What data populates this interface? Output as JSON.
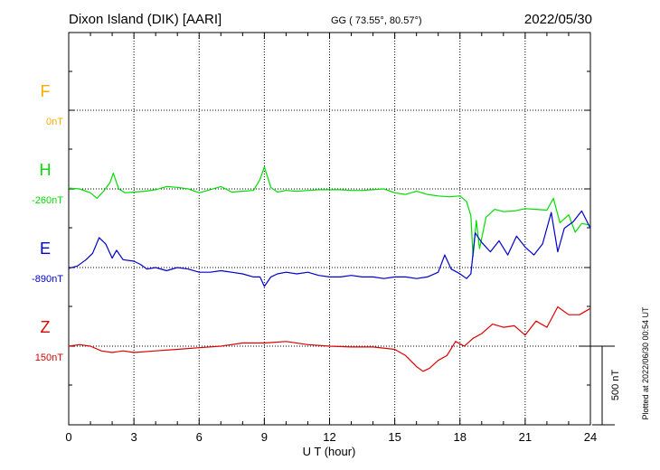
{
  "header": {
    "station": "Dixon Island (DIK)  [AARI]",
    "coords": "GG ( 73.55°,  80.57°)",
    "date": "2022/05/30"
  },
  "side_note": "Plotted at 2022/06/30 00:54 UT",
  "chart_data": {
    "type": "line",
    "title": "Dixon Island (DIK)  [AARI]",
    "xlabel": "U T (hour)",
    "xlim": [
      0,
      24
    ],
    "x_ticks": [
      0,
      3,
      6,
      9,
      12,
      15,
      18,
      21,
      24
    ],
    "x_tick_labels": [
      "0",
      "3",
      "6",
      "9",
      "12",
      "15",
      "18",
      "21",
      "24"
    ],
    "grid": true,
    "scale_bar": {
      "value_nT": 500,
      "label": "500 nT"
    },
    "colors": {
      "F": "#ffaa00",
      "H": "#00dd00",
      "E": "#0000cc",
      "Z": "#dd0000",
      "grid": "#000000"
    },
    "series": [
      {
        "name": "F",
        "baseline": "0nT",
        "baseline_nT": 0,
        "x": [],
        "values": []
      },
      {
        "name": "H",
        "baseline": "-260nT",
        "baseline_nT": -260,
        "x": [
          0,
          0.5,
          1.0,
          1.3,
          1.6,
          1.9,
          2.05,
          2.3,
          2.6,
          3.0,
          3.5,
          4.0,
          4.5,
          5.0,
          5.5,
          6.0,
          6.5,
          7.0,
          7.5,
          8.0,
          8.5,
          8.8,
          9.0,
          9.3,
          9.6,
          10.0,
          10.5,
          11.0,
          11.5,
          12.0,
          12.5,
          13.0,
          13.5,
          14.0,
          14.5,
          15.0,
          15.5,
          16.0,
          16.5,
          17.0,
          17.5,
          18.0,
          18.3,
          18.5,
          18.6,
          18.75,
          18.9,
          19.2,
          19.6,
          20.0,
          20.5,
          21.0,
          21.5,
          22.0,
          22.3,
          22.6,
          23.0,
          23.3,
          23.6,
          24
        ],
        "values": [
          5,
          0,
          -25,
          -60,
          -15,
          40,
          100,
          0,
          -25,
          -20,
          -15,
          -5,
          15,
          10,
          0,
          -25,
          -5,
          15,
          -20,
          -15,
          -10,
          60,
          140,
          10,
          -20,
          -10,
          -15,
          -10,
          -5,
          -5,
          -5,
          -10,
          -10,
          -5,
          0,
          -25,
          -35,
          -15,
          -35,
          -45,
          -50,
          -45,
          -80,
          -170,
          -430,
          -200,
          -380,
          -180,
          -130,
          -145,
          -140,
          -125,
          -130,
          -135,
          -60,
          -215,
          -165,
          -275,
          -220,
          -230
        ]
      },
      {
        "name": "E",
        "baseline": "-890nT",
        "baseline_nT": -890,
        "x": [
          0,
          0.4,
          0.8,
          1.1,
          1.4,
          1.7,
          2.0,
          2.2,
          2.5,
          3.0,
          3.3,
          3.6,
          4.0,
          4.5,
          5.0,
          5.5,
          6.0,
          6.5,
          7.0,
          7.5,
          8.0,
          8.5,
          8.8,
          9.0,
          9.3,
          9.6,
          10.0,
          10.5,
          11.0,
          11.5,
          12.0,
          12.5,
          13.0,
          13.5,
          14.0,
          14.5,
          15.0,
          15.5,
          16.0,
          16.5,
          17.0,
          17.3,
          17.6,
          18.0,
          18.3,
          18.5,
          18.7,
          19.0,
          19.4,
          19.8,
          20.2,
          20.6,
          21.0,
          21.4,
          21.8,
          22.2,
          22.5,
          22.8,
          23.2,
          23.6,
          24
        ],
        "values": [
          -5,
          10,
          50,
          90,
          190,
          150,
          60,
          110,
          50,
          40,
          20,
          -10,
          0,
          -20,
          0,
          -10,
          -30,
          -30,
          -20,
          -30,
          -40,
          -60,
          -60,
          -120,
          -60,
          -40,
          -30,
          -40,
          -30,
          -50,
          -60,
          -60,
          -50,
          -60,
          -60,
          -70,
          -60,
          -60,
          -70,
          -60,
          -30,
          80,
          -10,
          -40,
          -70,
          -40,
          220,
          160,
          100,
          170,
          80,
          200,
          130,
          80,
          150,
          350,
          100,
          250,
          290,
          360,
          250
        ]
      },
      {
        "name": "Z",
        "baseline": "150nT",
        "baseline_nT": 150,
        "x": [
          0,
          0.5,
          1.0,
          1.5,
          2.0,
          2.5,
          3.0,
          4.0,
          5.0,
          6.0,
          7.0,
          8.0,
          9.0,
          10.0,
          11.0,
          12.0,
          13.0,
          14.0,
          15.0,
          15.5,
          16.0,
          16.3,
          16.6,
          17.0,
          17.4,
          17.8,
          18.2,
          18.6,
          19.0,
          19.5,
          20.0,
          20.5,
          21.0,
          21.5,
          22.0,
          22.5,
          23.0,
          23.5,
          24
        ],
        "values": [
          0,
          10,
          0,
          -30,
          -40,
          -30,
          -40,
          -30,
          -20,
          -10,
          0,
          20,
          20,
          30,
          10,
          0,
          -5,
          -5,
          -20,
          -60,
          -130,
          -160,
          -140,
          -90,
          -60,
          30,
          0,
          50,
          80,
          140,
          120,
          130,
          70,
          160,
          120,
          250,
          200,
          200,
          240
        ]
      }
    ]
  }
}
